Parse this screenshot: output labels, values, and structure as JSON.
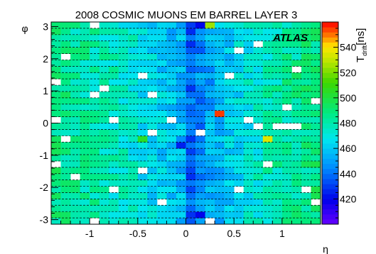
{
  "chart_data": {
    "type": "heatmap",
    "title": "2008 COSMIC MUONS EM BARREL LAYER 3",
    "xlabel": "η",
    "ylabel": "φ",
    "xlim": [
      -1.4,
      1.4
    ],
    "ylim": [
      -3.1416,
      3.1416
    ],
    "x_ticks": [
      {
        "value": -1,
        "label": "-1"
      },
      {
        "value": -0.5,
        "label": "-0.5"
      },
      {
        "value": 0,
        "label": "0"
      },
      {
        "value": 0.5,
        "label": "0.5"
      },
      {
        "value": 1,
        "label": "1"
      }
    ],
    "y_ticks": [
      {
        "value": -3,
        "label": "-3"
      },
      {
        "value": -2,
        "label": "-2"
      },
      {
        "value": -1,
        "label": "-1"
      },
      {
        "value": 0,
        "label": "0"
      },
      {
        "value": 1,
        "label": "1"
      },
      {
        "value": 2,
        "label": "2"
      },
      {
        "value": 3,
        "label": "3"
      }
    ],
    "grid": "horizontal dashed",
    "n_eta_bins": 28,
    "n_phi_bins": 32,
    "annotation": "ATLAS",
    "colorbar": {
      "label_main": "T",
      "label_sub": "drift",
      "unit": "[ns]",
      "range": [
        400,
        560
      ],
      "ticks": [
        {
          "value": 420,
          "label": "420"
        },
        {
          "value": 440,
          "label": "440"
        },
        {
          "value": 460,
          "label": "460"
        },
        {
          "value": 480,
          "label": "480"
        },
        {
          "value": 500,
          "label": "500"
        },
        {
          "value": 520,
          "label": "520"
        },
        {
          "value": 540,
          "label": "540"
        }
      ]
    },
    "value_profile_by_eta": [
      487,
      485,
      483,
      482,
      480,
      478,
      476,
      474,
      472,
      468,
      465,
      462,
      458,
      455,
      438,
      446,
      452,
      456,
      462,
      466,
      470,
      474,
      477,
      480,
      482,
      484,
      486,
      488
    ],
    "empty_cells": [
      {
        "eta": -1.35,
        "phi": 0.05
      },
      {
        "eta": -1.35,
        "phi": 1.35
      },
      {
        "eta": -1.25,
        "phi": 2.15
      },
      {
        "eta": -1.35,
        "phi": -1.35
      },
      {
        "eta": -1.25,
        "phi": -0.55
      },
      {
        "eta": -1.15,
        "phi": -1.75
      },
      {
        "eta": -0.95,
        "phi": 2.95
      },
      {
        "eta": -0.95,
        "phi": 0.95
      },
      {
        "eta": -0.95,
        "phi": -2.95
      },
      {
        "eta": -0.85,
        "phi": 1.15
      },
      {
        "eta": -0.75,
        "phi": 0.05
      },
      {
        "eta": -0.75,
        "phi": -2.15
      },
      {
        "eta": -0.45,
        "phi": 1.55
      },
      {
        "eta": -0.45,
        "phi": -1.55
      },
      {
        "eta": -0.35,
        "phi": 0.85
      },
      {
        "eta": -0.35,
        "phi": -0.35
      },
      {
        "eta": -0.25,
        "phi": -2.55
      },
      {
        "eta": -0.15,
        "phi": 0.05
      },
      {
        "eta": 0.15,
        "phi": -0.35
      },
      {
        "eta": 0.25,
        "phi": -2.95
      },
      {
        "eta": 0.45,
        "phi": 1.55
      },
      {
        "eta": 0.55,
        "phi": 2.35
      },
      {
        "eta": 0.55,
        "phi": -2.15
      },
      {
        "eta": 0.65,
        "phi": 0.05
      },
      {
        "eta": 0.75,
        "phi": -0.15
      },
      {
        "eta": 0.75,
        "phi": 2.55
      },
      {
        "eta": 0.85,
        "phi": -1.35
      },
      {
        "eta": 0.95,
        "phi": -0.15
      },
      {
        "eta": 1.05,
        "phi": -0.15
      },
      {
        "eta": 1.05,
        "phi": 0.45
      },
      {
        "eta": 1.15,
        "phi": 1.75
      },
      {
        "eta": 1.15,
        "phi": -0.15
      },
      {
        "eta": 1.25,
        "phi": -2.15
      },
      {
        "eta": 1.35,
        "phi": -2.55
      },
      {
        "eta": 1.35,
        "phi": 0.65
      }
    ],
    "outlier_cells": [
      {
        "eta": 0.25,
        "phi": 3.05,
        "value": 525
      },
      {
        "eta": 0.35,
        "phi": 0.25,
        "value": 555
      },
      {
        "eta": 0.85,
        "phi": -0.55,
        "value": 535
      },
      {
        "eta": -0.45,
        "phi": -0.55,
        "value": 505
      },
      {
        "eta": -0.05,
        "phi": -0.75,
        "value": 425
      },
      {
        "eta": 0.15,
        "phi": 2.95,
        "value": 420
      },
      {
        "eta": 0.15,
        "phi": -2.75,
        "value": 420
      },
      {
        "eta": 0.05,
        "phi": 2.95,
        "value": 430
      }
    ]
  }
}
